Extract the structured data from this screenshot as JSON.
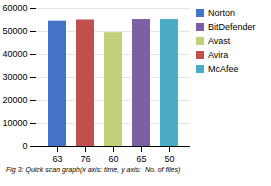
{
  "chart_data": {
    "type": "bar",
    "categories": [
      "63",
      "76",
      "60",
      "65",
      "50"
    ],
    "values": [
      54500,
      55000,
      49500,
      55200,
      55200
    ],
    "colors": [
      "#4472C4",
      "#C0504D",
      "#C4D079",
      "#7B60A3",
      "#4BACC6"
    ],
    "ylim": [
      0,
      60000
    ],
    "yticks": [
      0,
      10000,
      20000,
      30000,
      40000,
      50000,
      60000
    ],
    "grid": true,
    "legend": "right",
    "legend_labels": [
      "Norton",
      "BitDefender",
      "Avast",
      "Avira",
      "McAfee"
    ],
    "legend_colors": [
      "#4472C4",
      "#7B60A3",
      "#C4D079",
      "#C0504D",
      "#4BACC6"
    ],
    "caption": "Fig 3: Quick scan graph(x axis: time, y axis:  No. of files)"
  }
}
